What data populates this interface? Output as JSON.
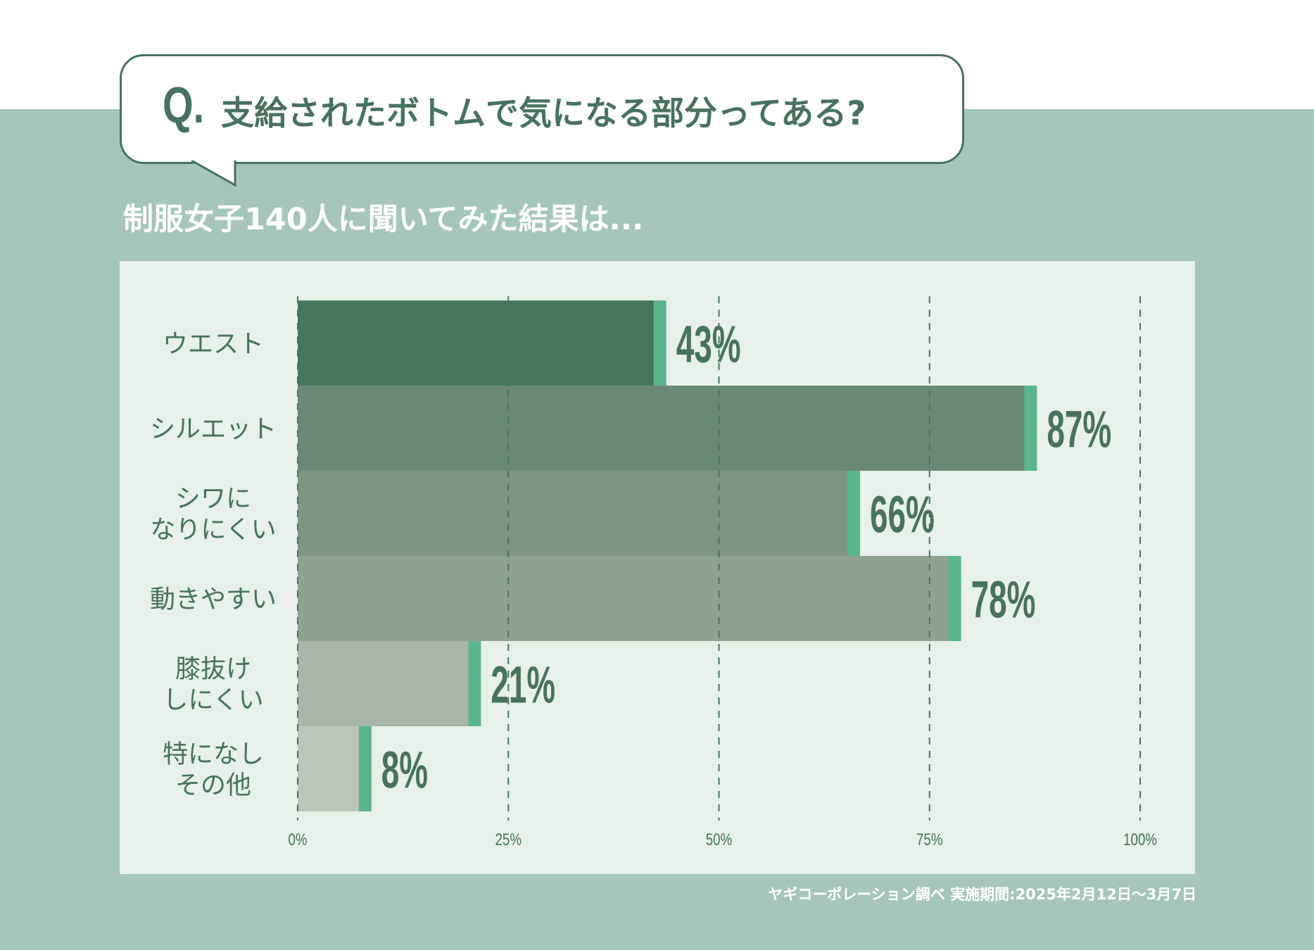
{
  "header": {
    "q_mark": "Q.",
    "question": "支給されたボトムで気になる部分ってある?",
    "subtitle": "制服女子140人に聞いてみた結果は..."
  },
  "source": "ヤギコーポレーション調べ 実施期間:2025年2月12日〜3月7日",
  "colors": {
    "background_band": "#a7c6bb",
    "panel": "#e7f0ea",
    "text": "#47725f",
    "accent": "#5bb58c",
    "bars": [
      "#47765f",
      "#6a8878",
      "#7e9584",
      "#8fa292",
      "#a9b5aa",
      "#bcc5bc"
    ]
  },
  "chart_data": {
    "type": "bar",
    "orientation": "horizontal",
    "categories": [
      [
        "ウエスト"
      ],
      [
        "シルエット"
      ],
      [
        "シワに",
        "なりにくい"
      ],
      [
        "動きやすい"
      ],
      [
        "膝抜け",
        "しにくい"
      ],
      [
        "特になし",
        "その他"
      ]
    ],
    "values": [
      43,
      87,
      66,
      78,
      21,
      8
    ],
    "value_labels": [
      "43%",
      "87%",
      "66%",
      "78%",
      "21%",
      "8%"
    ],
    "xlim": [
      0,
      100
    ],
    "xticks": [
      "0%",
      "25%",
      "50%",
      "75%",
      "100%"
    ],
    "grid": "vertical dashed",
    "title": "",
    "xlabel": "",
    "ylabel": ""
  }
}
